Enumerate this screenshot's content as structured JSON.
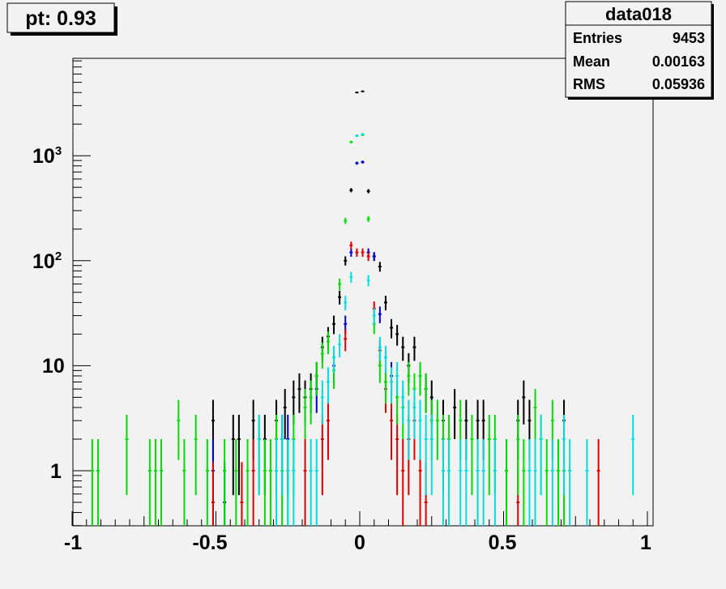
{
  "title_box": {
    "label": "pt: 0.93"
  },
  "stats_box": {
    "title": "data018",
    "rows": [
      {
        "label": "Entries",
        "value": "9453"
      },
      {
        "label": "Mean",
        "value": "0.00163"
      },
      {
        "label": "RMS",
        "value": "0.05936"
      }
    ]
  },
  "chart_data": {
    "type": "scatter",
    "title": "pt: 0.93",
    "xlabel": "",
    "ylabel": "",
    "xlim": [
      -1,
      1
    ],
    "ylim": [
      0.3,
      7000
    ],
    "y_scale": "log",
    "grid": false,
    "legend": "none",
    "x_tick_labels": [
      "-1",
      "-0.5",
      "0",
      "0.5",
      "1"
    ],
    "y_tick_labels": [
      "1",
      "10",
      "10^2",
      "10^3"
    ],
    "series": [
      {
        "color": "#000000",
        "x": [
          -0.51,
          -0.44,
          -0.42,
          -0.37,
          -0.33,
          -0.29,
          -0.26,
          -0.23,
          -0.21,
          -0.19,
          -0.17,
          -0.15,
          -0.13,
          -0.11,
          -0.09,
          -0.07,
          -0.05,
          -0.03,
          -0.01,
          0.01,
          0.03,
          0.05,
          0.07,
          0.09,
          0.11,
          0.13,
          0.15,
          0.17,
          0.19,
          0.21,
          0.23,
          0.25,
          0.29,
          0.33,
          0.37,
          0.41,
          0.43,
          0.55,
          0.57,
          0.59,
          0.71
        ],
        "y": [
          3,
          2,
          2,
          3,
          2,
          3,
          4,
          5,
          6,
          5,
          6,
          8,
          15,
          19,
          25,
          45,
          100,
          470,
          4000,
          4100,
          460,
          110,
          88,
          40,
          23,
          20,
          15,
          10,
          15,
          8,
          6,
          5,
          3,
          4,
          3,
          3,
          3,
          3,
          5,
          3,
          3
        ]
      },
      {
        "color": "#0000cc",
        "x": [
          -0.51,
          -0.47,
          -0.27,
          -0.25,
          -0.15,
          -0.09,
          -0.05,
          -0.03,
          -0.01,
          0.01,
          0.03,
          0.05,
          0.07,
          0.11
        ],
        "y": [
          1,
          0.5,
          2,
          2,
          6,
          10,
          25,
          120,
          850,
          870,
          120,
          110,
          31,
          8
        ]
      },
      {
        "color": "#dd0000",
        "x": [
          -0.51,
          -0.41,
          -0.37,
          -0.19,
          -0.13,
          -0.11,
          -0.05,
          -0.03,
          -0.01,
          0.01,
          0.03,
          0.05,
          0.07,
          0.09,
          0.11,
          0.13,
          0.15,
          0.17,
          0.19,
          0.21,
          0.23,
          0.51,
          0.55,
          0.83
        ],
        "y": [
          0.5,
          0.5,
          1,
          1,
          2,
          3,
          18,
          140,
          120,
          120,
          110,
          35,
          14,
          6,
          3,
          2,
          1,
          2,
          3,
          1,
          0.5,
          1,
          0.5,
          1
        ]
      },
      {
        "color": "#00dd00",
        "x": [
          -0.93,
          -0.91,
          -0.81,
          -0.73,
          -0.71,
          -0.69,
          -0.63,
          -0.61,
          -0.57,
          -0.53,
          -0.47,
          -0.43,
          -0.39,
          -0.35,
          -0.33,
          -0.31,
          -0.29,
          -0.27,
          -0.25,
          -0.23,
          -0.19,
          -0.17,
          -0.15,
          -0.13,
          -0.11,
          -0.09,
          -0.07,
          -0.05,
          -0.03,
          -0.01,
          0.01,
          0.03,
          0.05,
          0.07,
          0.09,
          0.11,
          0.13,
          0.15,
          0.17,
          0.19,
          0.21,
          0.23,
          0.25,
          0.27,
          0.29,
          0.31,
          0.35,
          0.39,
          0.41,
          0.45,
          0.47,
          0.51,
          0.55,
          0.57,
          0.61,
          0.63,
          0.65,
          0.67,
          0.69,
          0.71
        ],
        "y": [
          1,
          1,
          2,
          1,
          1,
          1,
          3,
          1,
          2,
          1,
          1,
          1,
          1,
          2,
          1,
          1,
          2,
          1,
          1,
          2,
          4,
          5,
          8,
          13,
          17,
          9,
          60,
          240,
          1350,
          1550,
          1580,
          250,
          25,
          10,
          7,
          7,
          5,
          4,
          8,
          6,
          8,
          6,
          3,
          3,
          2,
          2,
          3,
          2,
          1,
          2,
          2,
          1,
          2,
          1,
          4,
          2,
          1,
          3,
          1,
          1
        ]
      },
      {
        "color": "#00dddd",
        "x": [
          -0.35,
          -0.29,
          -0.27,
          -0.25,
          -0.23,
          -0.17,
          -0.15,
          -0.13,
          -0.11,
          -0.09,
          -0.07,
          -0.05,
          -0.03,
          -0.01,
          0.01,
          0.03,
          0.05,
          0.07,
          0.09,
          0.11,
          0.13,
          0.15,
          0.17,
          0.19,
          0.21,
          0.23,
          0.25,
          0.29,
          0.31,
          0.35,
          0.37,
          0.41,
          0.43,
          0.47,
          0.59,
          0.61,
          0.63,
          0.67,
          0.71,
          0.73,
          0.79,
          0.95
        ],
        "y": [
          2,
          1,
          2,
          1,
          1,
          1,
          1,
          5,
          7,
          12,
          16,
          40,
          70,
          1550,
          1600,
          65,
          30,
          15,
          12,
          7,
          8,
          5,
          3,
          4,
          3,
          2,
          2,
          1,
          1,
          1,
          1,
          1,
          1,
          1,
          1,
          1,
          2,
          1,
          2,
          1,
          1,
          2
        ]
      }
    ]
  }
}
